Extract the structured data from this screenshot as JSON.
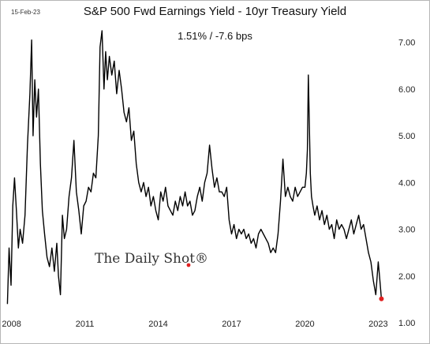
{
  "date_stamp": "15-Feb-23",
  "watermark": "The Daily Shot®",
  "colors": {
    "line": "#000000",
    "endpoint": "#e02020",
    "frame": "#b7b7b7"
  },
  "chart_data": {
    "type": "line",
    "title": "S&P 500 Fwd Earnings Yield - 10yr Treasury Yield",
    "subtitle": "1.51%  /  -7.6 bps",
    "xlabel": "",
    "ylabel": "",
    "xlim": [
      2007.85,
      2023.6
    ],
    "ylim": [
      1.0,
      7.4
    ],
    "x_ticks": [
      2008,
      2011,
      2014,
      2017,
      2020,
      2023
    ],
    "x_tick_labels": [
      "2008",
      "2011",
      "2014",
      "2017",
      "2020",
      "2023"
    ],
    "y_ticks": [
      1,
      2,
      3,
      4,
      5,
      6,
      7
    ],
    "y_tick_labels": [
      "1.00",
      "2.00",
      "3.00",
      "4.00",
      "5.00",
      "6.00",
      "7.00"
    ],
    "y_axis_side": "right",
    "grid": false,
    "legend": "none",
    "series": [
      {
        "x": [
          2007.83,
          2007.9,
          2007.98,
          2008.05,
          2008.12,
          2008.2,
          2008.28,
          2008.35,
          2008.45,
          2008.55,
          2008.65,
          2008.75,
          2008.82,
          2008.88,
          2008.95,
          2009.02,
          2009.1,
          2009.18,
          2009.26,
          2009.35,
          2009.45,
          2009.55,
          2009.65,
          2009.75,
          2009.85,
          2009.92,
          2010.0,
          2010.08,
          2010.16,
          2010.25,
          2010.35,
          2010.45,
          2010.55,
          2010.65,
          2010.75,
          2010.85,
          2010.95,
          2011.05,
          2011.15,
          2011.25,
          2011.35,
          2011.45,
          2011.55,
          2011.62,
          2011.7,
          2011.78,
          2011.85,
          2011.92,
          2012.0,
          2012.1,
          2012.2,
          2012.3,
          2012.4,
          2012.5,
          2012.6,
          2012.7,
          2012.8,
          2012.9,
          2013.0,
          2013.1,
          2013.2,
          2013.3,
          2013.4,
          2013.5,
          2013.6,
          2013.7,
          2013.8,
          2013.9,
          2014.0,
          2014.1,
          2014.2,
          2014.3,
          2014.4,
          2014.5,
          2014.6,
          2014.7,
          2014.8,
          2014.9,
          2015.0,
          2015.1,
          2015.2,
          2015.3,
          2015.4,
          2015.5,
          2015.6,
          2015.7,
          2015.8,
          2015.9,
          2016.0,
          2016.1,
          2016.2,
          2016.3,
          2016.4,
          2016.5,
          2016.6,
          2016.7,
          2016.8,
          2016.9,
          2017.0,
          2017.1,
          2017.2,
          2017.3,
          2017.4,
          2017.5,
          2017.6,
          2017.7,
          2017.8,
          2017.9,
          2018.0,
          2018.1,
          2018.2,
          2018.3,
          2018.4,
          2018.5,
          2018.6,
          2018.7,
          2018.8,
          2018.9,
          2019.0,
          2019.1,
          2019.2,
          2019.3,
          2019.4,
          2019.5,
          2019.6,
          2019.7,
          2019.8,
          2019.9,
          2020.0,
          2020.06,
          2020.1,
          2020.14,
          2020.18,
          2020.22,
          2020.27,
          2020.33,
          2020.4,
          2020.5,
          2020.6,
          2020.7,
          2020.8,
          2020.9,
          2021.0,
          2021.1,
          2021.2,
          2021.3,
          2021.4,
          2021.5,
          2021.6,
          2021.7,
          2021.8,
          2021.9,
          2022.0,
          2022.1,
          2022.2,
          2022.3,
          2022.4,
          2022.5,
          2022.6,
          2022.7,
          2022.8,
          2022.9,
          2023.0,
          2023.05,
          2023.1,
          2023.13
        ],
        "y": [
          1.4,
          2.6,
          1.8,
          3.5,
          4.1,
          3.4,
          2.6,
          3.0,
          2.7,
          3.3,
          4.8,
          5.9,
          7.05,
          5.0,
          6.2,
          5.4,
          6.0,
          4.4,
          3.4,
          2.9,
          2.4,
          2.2,
          2.6,
          2.1,
          2.7,
          2.0,
          1.6,
          3.3,
          2.8,
          3.0,
          3.7,
          4.1,
          4.9,
          3.8,
          3.4,
          2.9,
          3.5,
          3.6,
          3.9,
          3.8,
          4.2,
          4.1,
          5.0,
          6.9,
          7.25,
          6.0,
          6.8,
          6.2,
          6.7,
          6.3,
          6.6,
          5.9,
          6.4,
          6.0,
          5.5,
          5.3,
          5.6,
          4.9,
          5.1,
          4.4,
          4.0,
          3.8,
          4.0,
          3.7,
          3.9,
          3.5,
          3.7,
          3.4,
          3.2,
          3.8,
          3.6,
          3.9,
          3.5,
          3.4,
          3.3,
          3.6,
          3.4,
          3.7,
          3.5,
          3.8,
          3.5,
          3.6,
          3.3,
          3.4,
          3.7,
          3.9,
          3.6,
          4.0,
          4.2,
          4.8,
          4.3,
          3.9,
          4.1,
          3.8,
          3.8,
          3.7,
          3.9,
          3.2,
          2.9,
          3.1,
          2.8,
          3.0,
          2.9,
          3.0,
          2.8,
          2.9,
          2.7,
          2.8,
          2.6,
          2.9,
          3.0,
          2.9,
          2.8,
          2.7,
          2.5,
          2.6,
          2.5,
          2.9,
          3.6,
          4.5,
          3.7,
          3.9,
          3.7,
          3.6,
          3.9,
          3.7,
          3.8,
          3.9,
          3.9,
          4.2,
          4.7,
          6.3,
          5.3,
          4.2,
          3.7,
          3.5,
          3.3,
          3.5,
          3.2,
          3.4,
          3.1,
          3.3,
          3.0,
          3.1,
          2.8,
          3.2,
          3.0,
          3.1,
          3.0,
          2.8,
          3.0,
          3.2,
          2.9,
          3.1,
          3.3,
          3.0,
          3.1,
          2.8,
          2.5,
          2.3,
          1.9,
          1.6,
          2.3,
          2.0,
          1.7,
          1.51
        ]
      }
    ],
    "endpoint": {
      "x": 2023.13,
      "y": 1.51
    }
  }
}
